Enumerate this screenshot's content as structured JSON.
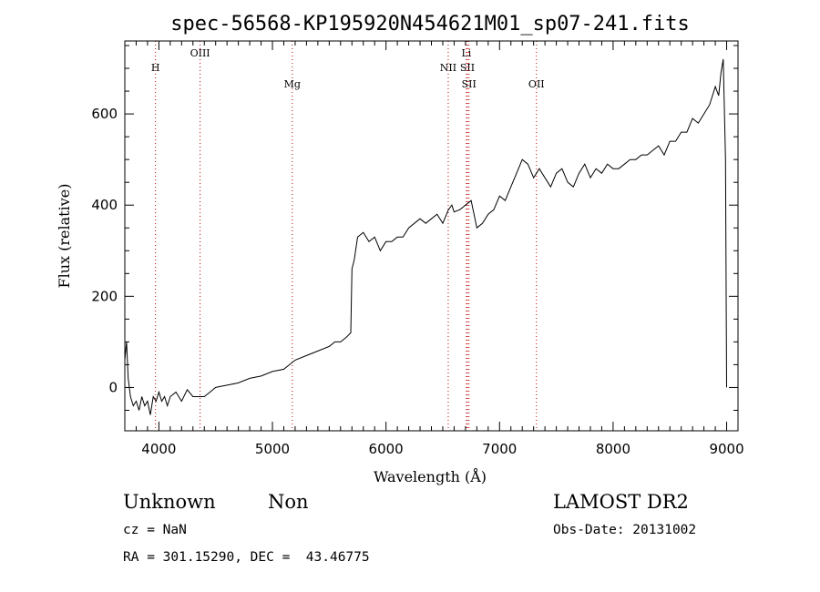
{
  "chart_data": {
    "type": "line",
    "title": "spec-56568-KP195920N454621M01_sp07-241.fits",
    "xlabel": "Wavelength (Å)",
    "ylabel": "Flux (relative)",
    "xlim": [
      3700,
      9100
    ],
    "ylim": [
      -95,
      760
    ],
    "xticks": [
      4000,
      5000,
      6000,
      7000,
      8000,
      9000
    ],
    "yticks": [
      0,
      200,
      400,
      600
    ],
    "grid": false,
    "series_color": "#000000",
    "line_marker_color": "#c00000",
    "spectral_lines": [
      {
        "label": "H",
        "x": 3970,
        "row": 3
      },
      {
        "label": "OIII",
        "x": 4363,
        "row": 1
      },
      {
        "label": "Mg",
        "x": 5175,
        "row": 4
      },
      {
        "label": "NII",
        "x": 6548,
        "row": 3
      },
      {
        "label": "Li",
        "x": 6708,
        "row": 1
      },
      {
        "label": "SII",
        "x": 6717,
        "row": 3
      },
      {
        "label": "SII",
        "x": 6731,
        "row": 4
      },
      {
        "label": "OII",
        "x": 7325,
        "row": 4
      }
    ],
    "series": [
      {
        "x": [
          3700,
          3715,
          3730,
          3750,
          3775,
          3800,
          3825,
          3850,
          3875,
          3900,
          3925,
          3950,
          3975,
          4000,
          4025,
          4050,
          4075,
          4100,
          4150,
          4200,
          4250,
          4300,
          4350,
          4400,
          4450,
          4500,
          4600,
          4700,
          4800,
          4900,
          5000,
          5100,
          5200,
          5300,
          5400,
          5500,
          5550,
          5600,
          5650,
          5690,
          5700,
          5720,
          5750,
          5800,
          5850,
          5900,
          5950,
          6000,
          6050,
          6100,
          6150,
          6200,
          6250,
          6300,
          6350,
          6400,
          6450,
          6500,
          6550,
          6580,
          6600,
          6650,
          6700,
          6750,
          6800,
          6850,
          6900,
          6950,
          7000,
          7050,
          7100,
          7150,
          7200,
          7250,
          7300,
          7350,
          7400,
          7450,
          7500,
          7550,
          7600,
          7650,
          7700,
          7750,
          7800,
          7850,
          7900,
          7950,
          8000,
          8050,
          8100,
          8150,
          8200,
          8250,
          8300,
          8350,
          8400,
          8450,
          8500,
          8550,
          8600,
          8650,
          8700,
          8750,
          8800,
          8850,
          8900,
          8930,
          8950,
          8970,
          8990,
          9000
        ],
        "y": [
          60,
          100,
          20,
          -20,
          -40,
          -30,
          -50,
          -20,
          -40,
          -30,
          -60,
          -20,
          -30,
          -10,
          -30,
          -20,
          -40,
          -20,
          -10,
          -30,
          -5,
          -20,
          -20,
          -20,
          -10,
          0,
          5,
          10,
          20,
          25,
          35,
          40,
          60,
          70,
          80,
          90,
          100,
          100,
          110,
          120,
          260,
          280,
          330,
          340,
          320,
          330,
          300,
          320,
          320,
          330,
          330,
          350,
          360,
          370,
          360,
          370,
          380,
          360,
          390,
          400,
          385,
          390,
          400,
          410,
          350,
          360,
          380,
          390,
          420,
          410,
          440,
          470,
          500,
          490,
          460,
          480,
          460,
          440,
          470,
          480,
          450,
          440,
          470,
          490,
          460,
          480,
          470,
          490,
          480,
          480,
          490,
          500,
          500,
          510,
          510,
          520,
          530,
          510,
          540,
          540,
          560,
          560,
          590,
          580,
          600,
          620,
          660,
          640,
          690,
          720,
          500,
          0
        ]
      }
    ]
  },
  "info": {
    "class_label": "Unknown",
    "subclass_label": "Non",
    "survey": "LAMOST DR2",
    "redshift": "cz = NaN",
    "obs_date": "Obs-Date: 20131002",
    "coords": "RA = 301.15290, DEC =  43.46775"
  }
}
